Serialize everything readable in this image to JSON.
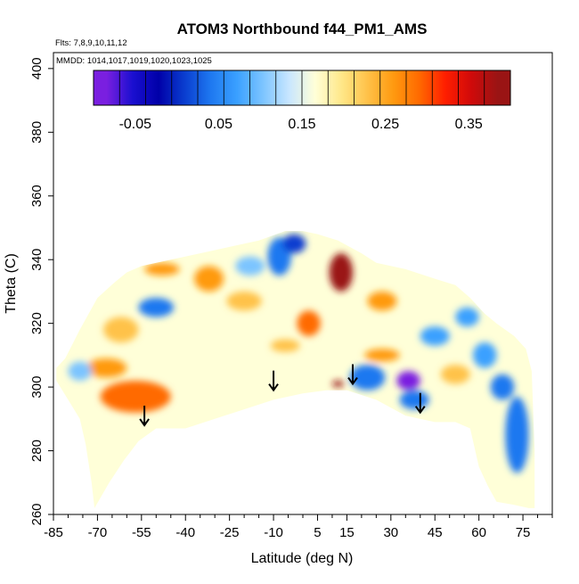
{
  "chart_data": {
    "type": "heatmap",
    "title": "ATOM3 Northbound f44_PM1_AMS",
    "flights_note": "Flts: 7,8,9,10,11,12",
    "dates_note": "MMDD: 1014,1017,1019,1020,1023,1025",
    "xlabel": "Latitude (deg N)",
    "ylabel": "Theta (C)",
    "xlim": [
      -85,
      85
    ],
    "ylim": [
      260,
      405
    ],
    "x_ticks": [
      -85,
      -70,
      -55,
      -40,
      -25,
      -10,
      5,
      15,
      30,
      45,
      60,
      75
    ],
    "y_ticks": [
      260,
      280,
      300,
      320,
      340,
      360,
      380,
      400
    ],
    "colorbar": {
      "min": -0.1,
      "max": 0.4,
      "tick_values": [
        -0.05,
        0.05,
        0.15,
        0.25,
        0.35
      ],
      "tick_labels": [
        "-0.05",
        "0.05",
        "0.15",
        "0.25",
        "0.35"
      ],
      "colors": [
        "#7a1fe0",
        "#1a0fd0",
        "#0000a8",
        "#0a3ed0",
        "#1e78f0",
        "#3aa0ff",
        "#7cc4ff",
        "#c8e6ff",
        "#ffffd8",
        "#ffe88a",
        "#ffc24a",
        "#ff9a10",
        "#ff6a00",
        "#ff1e00",
        "#d00a0a",
        "#9a1414"
      ]
    },
    "envelope": {
      "bottom": [
        [
          -71,
          262
        ],
        [
          -66,
          270
        ],
        [
          -61,
          277
        ],
        [
          -56,
          283
        ],
        [
          -50,
          287
        ],
        [
          -40,
          287
        ],
        [
          -30,
          290
        ],
        [
          -20,
          293
        ],
        [
          -10,
          296
        ],
        [
          0,
          298
        ],
        [
          8,
          299
        ],
        [
          15,
          299
        ],
        [
          25,
          296
        ],
        [
          35,
          291
        ],
        [
          45,
          289
        ],
        [
          52,
          289
        ],
        [
          57,
          287
        ],
        [
          60,
          275
        ],
        [
          63,
          269
        ],
        [
          66,
          264
        ],
        [
          72,
          263
        ],
        [
          77,
          262
        ],
        [
          79,
          262
        ]
      ],
      "top": [
        [
          79,
          280
        ],
        [
          78,
          305
        ],
        [
          76,
          312
        ],
        [
          72,
          316
        ],
        [
          66,
          320
        ],
        [
          62,
          323
        ],
        [
          57,
          328
        ],
        [
          52,
          332
        ],
        [
          45,
          334
        ],
        [
          35,
          337
        ],
        [
          25,
          339
        ],
        [
          20,
          342
        ],
        [
          12,
          346
        ],
        [
          5,
          348
        ],
        [
          0,
          349
        ],
        [
          -6,
          349
        ],
        [
          -15,
          346
        ],
        [
          -25,
          344
        ],
        [
          -35,
          342
        ],
        [
          -45,
          340
        ],
        [
          -55,
          338
        ],
        [
          -60,
          336
        ],
        [
          -64,
          333
        ],
        [
          -70,
          328
        ],
        [
          -76,
          318
        ],
        [
          -81,
          309
        ],
        [
          -84,
          306
        ],
        [
          -84,
          302
        ],
        [
          -80,
          296
        ],
        [
          -76,
          290
        ],
        [
          -74,
          282
        ],
        [
          -72,
          270
        ],
        [
          -71,
          262
        ]
      ]
    },
    "features": [
      {
        "lat": -57,
        "theta": 297,
        "rx": 12,
        "ry": 5,
        "value": 0.3
      },
      {
        "lat": -67,
        "theta": 306,
        "rx": 7,
        "ry": 3,
        "value": 0.26
      },
      {
        "lat": -62,
        "theta": 318,
        "rx": 6,
        "ry": 4,
        "value": 0.22
      },
      {
        "lat": -48,
        "theta": 337,
        "rx": 6,
        "ry": 2,
        "value": 0.25
      },
      {
        "lat": -50,
        "theta": 325,
        "rx": 6,
        "ry": 3,
        "value": 0.05
      },
      {
        "lat": -32,
        "theta": 334,
        "rx": 5,
        "ry": 4,
        "value": 0.26
      },
      {
        "lat": -20,
        "theta": 327,
        "rx": 6,
        "ry": 3,
        "value": 0.24
      },
      {
        "lat": -18,
        "theta": 338,
        "rx": 5,
        "ry": 3,
        "value": 0.1
      },
      {
        "lat": -8,
        "theta": 341,
        "rx": 4,
        "ry": 6,
        "value": 0.05
      },
      {
        "lat": -3,
        "theta": 345,
        "rx": 4,
        "ry": 3,
        "value": 0.0
      },
      {
        "lat": 2,
        "theta": 320,
        "rx": 4,
        "ry": 4,
        "value": 0.3
      },
      {
        "lat": -6,
        "theta": 313,
        "rx": 5,
        "ry": 2,
        "value": 0.23
      },
      {
        "lat": 13,
        "theta": 336,
        "rx": 4,
        "ry": 6,
        "value": 0.38
      },
      {
        "lat": 12,
        "theta": 301,
        "rx": 2,
        "ry": 1,
        "value": 0.4
      },
      {
        "lat": 22,
        "theta": 303,
        "rx": 6,
        "ry": 4,
        "value": 0.05
      },
      {
        "lat": 36,
        "theta": 302,
        "rx": 4,
        "ry": 3,
        "value": -0.07
      },
      {
        "lat": 38,
        "theta": 296,
        "rx": 5,
        "ry": 3,
        "value": 0.03
      },
      {
        "lat": 27,
        "theta": 327,
        "rx": 5,
        "ry": 3,
        "value": 0.25
      },
      {
        "lat": 27,
        "theta": 310,
        "rx": 6,
        "ry": 2,
        "value": 0.26
      },
      {
        "lat": 45,
        "theta": 316,
        "rx": 5,
        "ry": 3,
        "value": 0.06
      },
      {
        "lat": 52,
        "theta": 304,
        "rx": 5,
        "ry": 3,
        "value": 0.24
      },
      {
        "lat": 62,
        "theta": 310,
        "rx": 4,
        "ry": 4,
        "value": 0.06
      },
      {
        "lat": 68,
        "theta": 300,
        "rx": 4,
        "ry": 4,
        "value": 0.04
      },
      {
        "lat": 73,
        "theta": 285,
        "rx": 4,
        "ry": 12,
        "value": 0.05
      },
      {
        "lat": 56,
        "theta": 322,
        "rx": 4,
        "ry": 3,
        "value": 0.08
      },
      {
        "lat": -76,
        "theta": 305,
        "rx": 4,
        "ry": 3,
        "value": 0.1
      }
    ],
    "arrows": [
      [
        -54,
        288
      ],
      [
        -10,
        299
      ],
      [
        17,
        301
      ],
      [
        40,
        292
      ]
    ]
  }
}
